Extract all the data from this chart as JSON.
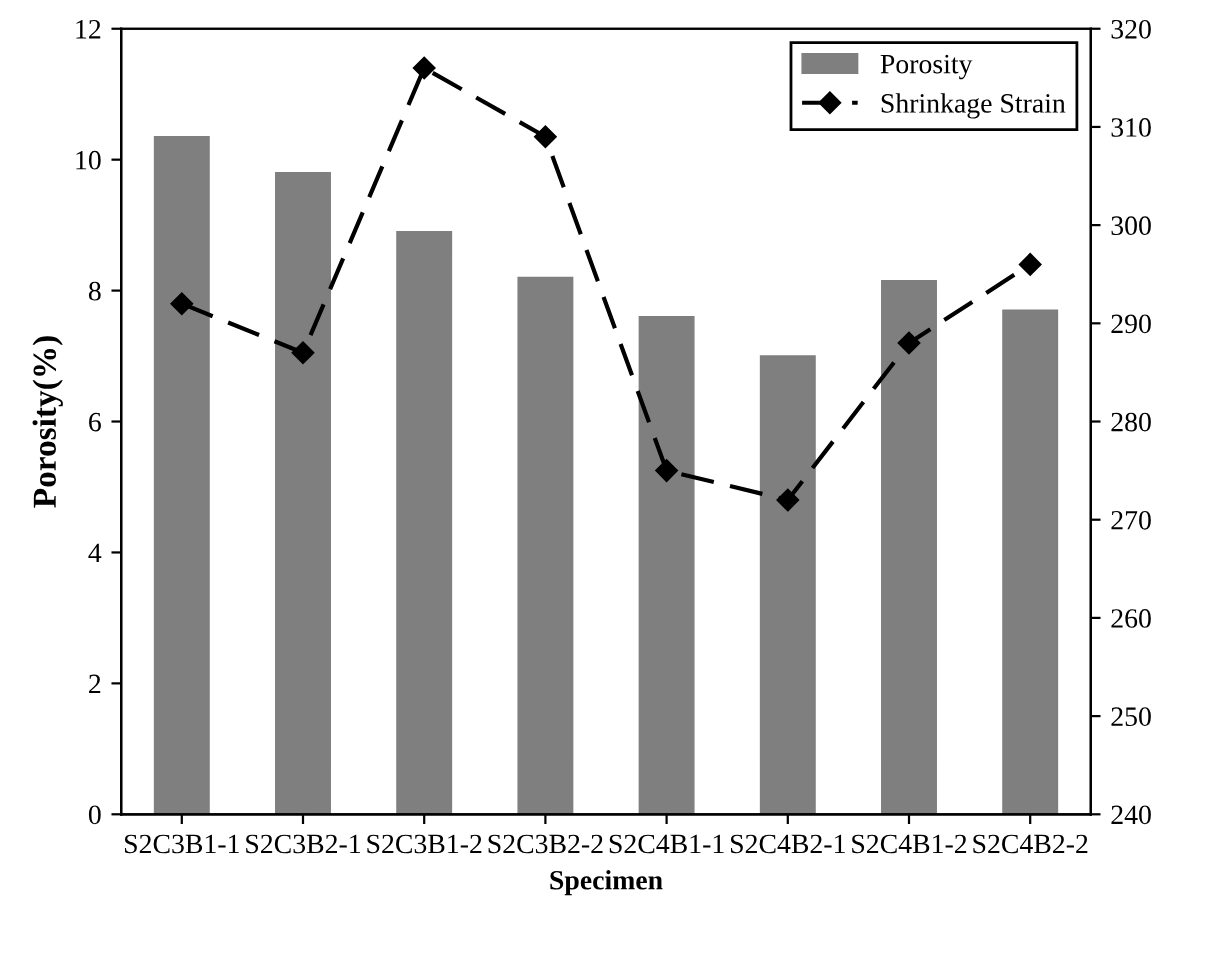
{
  "chart_data": {
    "type": "bar",
    "xlabel": "Specimen",
    "ylabel": "Porosity(%)",
    "categories": [
      "S2C3B1-1",
      "S2C3B2-1",
      "S2C3B1-2",
      "S2C3B2-2",
      "S2C4B1-1",
      "S2C4B2-1",
      "S2C4B1-2",
      "S2C4B2-2"
    ],
    "series": [
      {
        "name": "Porosity",
        "color": "#7f7f7f",
        "values": [
          10.35,
          9.8,
          8.9,
          8.2,
          7.6,
          7.0,
          8.15,
          7.7
        ]
      },
      {
        "name": "Shrinkage Strain",
        "type": "line",
        "axis": "y2",
        "color": "#000000",
        "marker": "diamond",
        "line_style": "dashed",
        "values": [
          292,
          287,
          316,
          309,
          275,
          272,
          288,
          296
        ]
      }
    ],
    "ylim": [
      0,
      12
    ],
    "yticks": [
      0,
      2,
      4,
      6,
      8,
      10,
      12
    ],
    "y2lim": [
      240,
      320
    ],
    "y2ticks": [
      240,
      250,
      260,
      270,
      280,
      290,
      300,
      310,
      320
    ],
    "legend": "top right",
    "grid": false
  }
}
